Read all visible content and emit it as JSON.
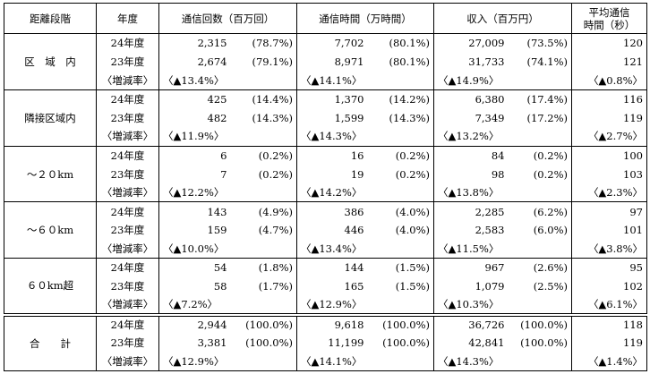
{
  "headers": {
    "band": "距離段階",
    "year": "年度",
    "calls": "通信回数（百万回）",
    "time": "通信時間（万時間）",
    "revenue": "収入（百万円）",
    "avg_line1": "平均通信",
    "avg_line2": "時間（秒）"
  },
  "groups": [
    {
      "label": "区　域　内",
      "rows": [
        {
          "year": "24年度",
          "calls": "2,315",
          "calls_pct": "(78.7%)",
          "time": "7,702",
          "time_pct": "(80.1%)",
          "rev": "27,009",
          "rev_pct": "(73.5%)",
          "avg": "120"
        },
        {
          "year": "23年度",
          "calls": "2,674",
          "calls_pct": "(79.1%)",
          "time": "8,971",
          "time_pct": "(80.1%)",
          "rev": "31,733",
          "rev_pct": "(74.1%)",
          "avg": "121"
        }
      ],
      "rate": {
        "label": "〈増減率〉",
        "calls": "〈▲13.4%〉",
        "time": "〈▲14.1%〉",
        "rev": "〈▲14.9%〉",
        "avg": "〈▲0.8%〉"
      }
    },
    {
      "label": "隣接区域内",
      "rows": [
        {
          "year": "24年度",
          "calls": "425",
          "calls_pct": "(14.4%)",
          "time": "1,370",
          "time_pct": "(14.2%)",
          "rev": "6,380",
          "rev_pct": "(17.4%)",
          "avg": "116"
        },
        {
          "year": "23年度",
          "calls": "482",
          "calls_pct": "(14.3%)",
          "time": "1,599",
          "time_pct": "(14.3%)",
          "rev": "7,349",
          "rev_pct": "(17.2%)",
          "avg": "119"
        }
      ],
      "rate": {
        "label": "〈増減率〉",
        "calls": "〈▲11.9%〉",
        "time": "〈▲14.3%〉",
        "rev": "〈▲13.2%〉",
        "avg": "〈▲2.7%〉"
      }
    },
    {
      "label": "～２０km",
      "rows": [
        {
          "year": "24年度",
          "calls": "6",
          "calls_pct": "(0.2%)",
          "time": "16",
          "time_pct": "(0.2%)",
          "rev": "84",
          "rev_pct": "(0.2%)",
          "avg": "100"
        },
        {
          "year": "23年度",
          "calls": "7",
          "calls_pct": "(0.2%)",
          "time": "19",
          "time_pct": "(0.2%)",
          "rev": "98",
          "rev_pct": "(0.2%)",
          "avg": "103"
        }
      ],
      "rate": {
        "label": "〈増減率〉",
        "calls": "〈▲12.2%〉",
        "time": "〈▲14.2%〉",
        "rev": "〈▲13.8%〉",
        "avg": "〈▲2.3%〉"
      }
    },
    {
      "label": "～６０km",
      "rows": [
        {
          "year": "24年度",
          "calls": "143",
          "calls_pct": "(4.9%)",
          "time": "386",
          "time_pct": "(4.0%)",
          "rev": "2,285",
          "rev_pct": "(6.2%)",
          "avg": "97"
        },
        {
          "year": "23年度",
          "calls": "159",
          "calls_pct": "(4.7%)",
          "time": "446",
          "time_pct": "(4.0%)",
          "rev": "2,583",
          "rev_pct": "(6.0%)",
          "avg": "101"
        }
      ],
      "rate": {
        "label": "〈増減率〉",
        "calls": "〈▲10.0%〉",
        "time": "〈▲13.4%〉",
        "rev": "〈▲11.5%〉",
        "avg": "〈▲3.8%〉"
      }
    },
    {
      "label": "６０km超",
      "rows": [
        {
          "year": "24年度",
          "calls": "54",
          "calls_pct": "(1.8%)",
          "time": "144",
          "time_pct": "(1.5%)",
          "rev": "967",
          "rev_pct": "(2.6%)",
          "avg": "95"
        },
        {
          "year": "23年度",
          "calls": "58",
          "calls_pct": "(1.7%)",
          "time": "165",
          "time_pct": "(1.5%)",
          "rev": "1,079",
          "rev_pct": "(2.5%)",
          "avg": "102"
        }
      ],
      "rate": {
        "label": "〈増減率〉",
        "calls": "〈▲7.2%〉",
        "time": "〈▲12.9%〉",
        "rev": "〈▲10.3%〉",
        "avg": "〈▲6.1%〉"
      }
    },
    {
      "label": "合　　計",
      "rows": [
        {
          "year": "24年度",
          "calls": "2,944",
          "calls_pct": "(100.0%)",
          "time": "9,618",
          "time_pct": "(100.0%)",
          "rev": "36,726",
          "rev_pct": "(100.0%)",
          "avg": "118"
        },
        {
          "year": "23年度",
          "calls": "3,381",
          "calls_pct": "(100.0%)",
          "time": "11,199",
          "time_pct": "(100.0%)",
          "rev": "42,841",
          "rev_pct": "(100.0%)",
          "avg": "119"
        }
      ],
      "rate": {
        "label": "〈増減率〉",
        "calls": "〈▲12.9%〉",
        "time": "〈▲14.1%〉",
        "rev": "〈▲14.3%〉",
        "avg": "〈▲1.4%〉"
      }
    }
  ]
}
